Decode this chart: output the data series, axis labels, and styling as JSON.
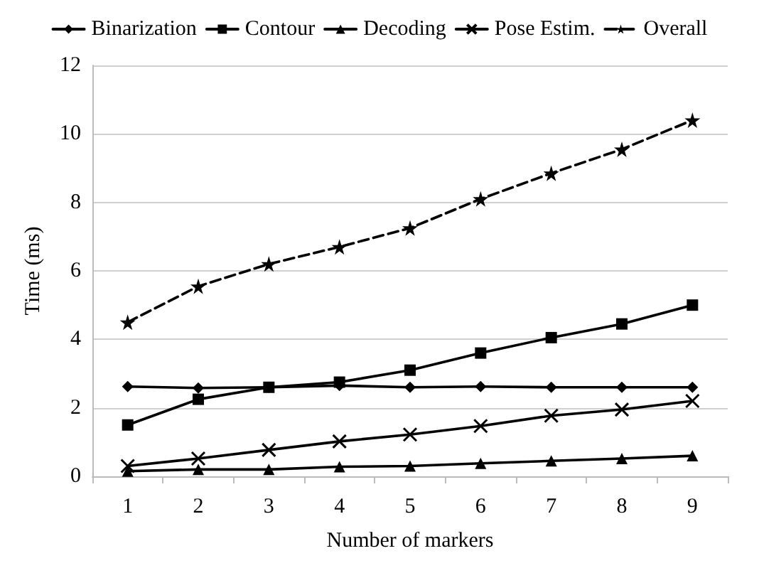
{
  "chart_data": {
    "type": "line",
    "xlabel": "Number of markers",
    "ylabel": "Time (ms)",
    "categories": [
      "1",
      "2",
      "3",
      "4",
      "5",
      "6",
      "7",
      "8",
      "9"
    ],
    "ylim": [
      0,
      12
    ],
    "yticks": [
      0,
      2,
      4,
      6,
      8,
      10,
      12
    ],
    "grid": "y",
    "legend": "top",
    "series": [
      {
        "name": "Binarization",
        "color": "#000000",
        "marker": "diamond",
        "line_style": "solid",
        "values": [
          2.62,
          2.58,
          2.6,
          2.65,
          2.6,
          2.62,
          2.6,
          2.6,
          2.6
        ]
      },
      {
        "name": "Contour",
        "color": "#000000",
        "marker": "square",
        "line_style": "solid",
        "values": [
          1.5,
          2.25,
          2.6,
          2.75,
          3.1,
          3.6,
          4.05,
          4.45,
          5.0
        ]
      },
      {
        "name": "Decoding",
        "color": "#000000",
        "marker": "triangle",
        "line_style": "solid",
        "values": [
          0.15,
          0.2,
          0.2,
          0.28,
          0.3,
          0.38,
          0.45,
          0.52,
          0.6
        ]
      },
      {
        "name": "Pose Estim.",
        "color": "#000000",
        "marker": "cross",
        "line_style": "solid",
        "values": [
          0.3,
          0.52,
          0.77,
          1.02,
          1.22,
          1.47,
          1.77,
          1.95,
          2.2
        ]
      },
      {
        "name": "Overall",
        "color": "#000000",
        "marker": "star",
        "line_style": "dashed",
        "values": [
          4.5,
          5.55,
          6.2,
          6.7,
          7.25,
          8.1,
          8.85,
          9.55,
          10.4
        ]
      }
    ]
  }
}
